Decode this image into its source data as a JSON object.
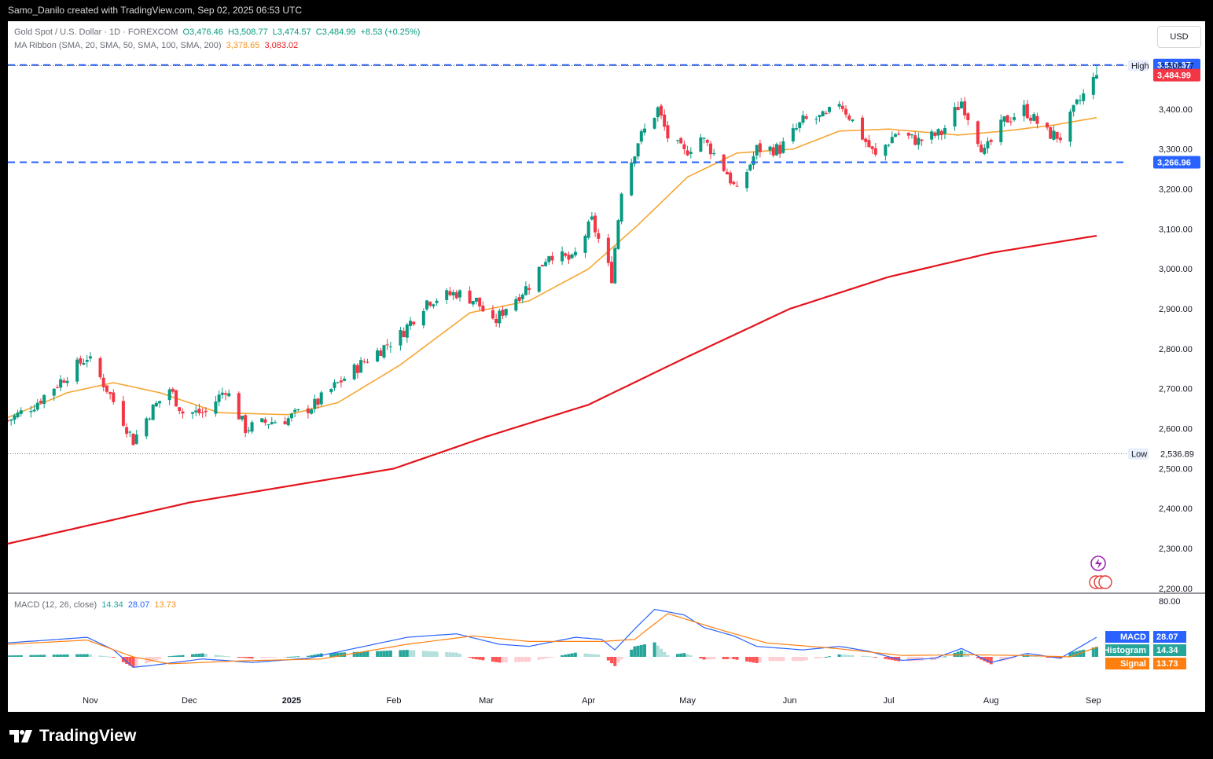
{
  "header": {
    "credit": "Samo_Danilo created with TradingView.com, Sep 02, 2025 06:53 UTC"
  },
  "symbol": {
    "title": "Gold Spot / U.S. Dollar · 1D · FOREXCOM",
    "open": "O3,476.46",
    "high": "H3,508.77",
    "low": "L3,474.57",
    "close": "C3,484.99",
    "change": "+8.53 (+0.25%)"
  },
  "ma_ribbon": {
    "label": "MA Ribbon (SMA, 20, SMA, 50, SMA, 100, SMA, 200)",
    "v1": "3,378.65",
    "v2": "3,083.02"
  },
  "macd": {
    "label": "MACD (12, 26, close)",
    "histogram": "14.34",
    "macd": "28.07",
    "signal": "13.73",
    "tags": {
      "macd": "MACD",
      "histogram": "Histogram",
      "signal": "Signal"
    }
  },
  "currency_button": "USD",
  "brand": "TradingView",
  "colors": {
    "up": "#089981",
    "down": "#f23645",
    "sma20": "#f7a532",
    "sma200": "#e3141c",
    "level": "#2962ff",
    "macd": "#2962ff",
    "signal": "#ff7f0e",
    "hist_up": "#26a69a",
    "hist_up_light": "#b2dfdb",
    "hist_down": "#ff5252",
    "hist_down_light": "#ffcdd2"
  },
  "chart_data": {
    "type": "candlestick",
    "price_axis": {
      "ticks": [
        2200,
        2300,
        2400,
        2500,
        2600,
        2700,
        2800,
        2900,
        3000,
        3100,
        3200,
        3300,
        3400
      ],
      "tick_labels": [
        "2,200.00",
        "2,300.00",
        "2,400.00",
        "2,500.00",
        "2,600.00",
        "2,700.00",
        "2,800.00",
        "2,900.00",
        "3,000.00",
        "3,100.00",
        "3,200.00",
        "3,300.00",
        "3,400.00"
      ],
      "range": [
        2190,
        3620
      ]
    },
    "time_axis": {
      "labels": [
        "Nov",
        "Dec",
        "2025",
        "Feb",
        "Mar",
        "Apr",
        "May",
        "Jun",
        "Jul",
        "Aug",
        "Sep"
      ],
      "dates": [
        "2024-11-01",
        "2024-12-01",
        "2025-01-01",
        "2025-02-01",
        "2025-03-01",
        "2025-04-01",
        "2025-05-01",
        "2025-06-01",
        "2025-07-01",
        "2025-08-01",
        "2025-09-01"
      ],
      "range": [
        "2024-10-07",
        "2025-09-02"
      ]
    },
    "anchors": [
      [
        "2024-10-07",
        2620
      ],
      [
        "2024-10-15",
        2660
      ],
      [
        "2024-10-23",
        2720
      ],
      [
        "2024-10-31",
        2780
      ],
      [
        "2024-11-06",
        2700
      ],
      [
        "2024-11-11",
        2620
      ],
      [
        "2024-11-14",
        2570
      ],
      [
        "2024-11-19",
        2640
      ],
      [
        "2024-11-25",
        2700
      ],
      [
        "2024-11-29",
        2640
      ],
      [
        "2024-12-06",
        2640
      ],
      [
        "2024-12-12",
        2700
      ],
      [
        "2024-12-18",
        2600
      ],
      [
        "2024-12-24",
        2615
      ],
      [
        "2024-12-31",
        2625
      ],
      [
        "2025-01-08",
        2660
      ],
      [
        "2025-01-16",
        2720
      ],
      [
        "2025-01-24",
        2775
      ],
      [
        "2025-02-03",
        2835
      ],
      [
        "2025-02-11",
        2920
      ],
      [
        "2025-02-20",
        2940
      ],
      [
        "2025-02-26",
        2920
      ],
      [
        "2025-03-03",
        2860
      ],
      [
        "2025-03-07",
        2905
      ],
      [
        "2025-03-14",
        2960
      ],
      [
        "2025-03-20",
        3040
      ],
      [
        "2025-03-27",
        3020
      ],
      [
        "2025-04-02",
        3120
      ],
      [
        "2025-04-08",
        2980
      ],
      [
        "2025-04-11",
        3200
      ],
      [
        "2025-04-16",
        3320
      ],
      [
        "2025-04-22",
        3400
      ],
      [
        "2025-04-25",
        3330
      ],
      [
        "2025-04-30",
        3290
      ],
      [
        "2025-05-05",
        3330
      ],
      [
        "2025-05-08",
        3300
      ],
      [
        "2025-05-13",
        3240
      ],
      [
        "2025-05-16",
        3190
      ],
      [
        "2025-05-22",
        3300
      ],
      [
        "2025-05-29",
        3300
      ],
      [
        "2025-06-05",
        3370
      ],
      [
        "2025-06-12",
        3380
      ],
      [
        "2025-06-16",
        3420
      ],
      [
        "2025-06-20",
        3370
      ],
      [
        "2025-06-27",
        3280
      ],
      [
        "2025-07-03",
        3340
      ],
      [
        "2025-07-10",
        3320
      ],
      [
        "2025-07-17",
        3340
      ],
      [
        "2025-07-23",
        3420
      ],
      [
        "2025-07-30",
        3290
      ],
      [
        "2025-08-05",
        3370
      ],
      [
        "2025-08-11",
        3400
      ],
      [
        "2025-08-18",
        3340
      ],
      [
        "2025-08-22",
        3330
      ],
      [
        "2025-08-27",
        3410
      ],
      [
        "2025-09-02",
        3485
      ]
    ],
    "sma20_anchors": [
      [
        "2024-10-07",
        2628
      ],
      [
        "2024-10-25",
        2690
      ],
      [
        "2024-11-08",
        2715
      ],
      [
        "2024-11-22",
        2690
      ],
      [
        "2024-12-10",
        2640
      ],
      [
        "2024-12-31",
        2635
      ],
      [
        "2025-01-15",
        2665
      ],
      [
        "2025-02-03",
        2760
      ],
      [
        "2025-02-24",
        2890
      ],
      [
        "2025-03-14",
        2920
      ],
      [
        "2025-04-01",
        3000
      ],
      [
        "2025-04-16",
        3110
      ],
      [
        "2025-05-01",
        3230
      ],
      [
        "2025-05-16",
        3290
      ],
      [
        "2025-06-02",
        3300
      ],
      [
        "2025-06-16",
        3345
      ],
      [
        "2025-07-01",
        3350
      ],
      [
        "2025-07-22",
        3335
      ],
      [
        "2025-08-05",
        3345
      ],
      [
        "2025-08-20",
        3360
      ],
      [
        "2025-09-02",
        3378.65
      ]
    ],
    "sma200_anchors": [
      [
        "2024-10-07",
        2312
      ],
      [
        "2024-12-01",
        2415
      ],
      [
        "2025-02-01",
        2500
      ],
      [
        "2025-03-01",
        2580
      ],
      [
        "2025-04-01",
        2660
      ],
      [
        "2025-05-01",
        2780
      ],
      [
        "2025-06-01",
        2900
      ],
      [
        "2025-07-01",
        2980
      ],
      [
        "2025-08-01",
        3040
      ],
      [
        "2025-09-02",
        3083.02
      ]
    ],
    "levels": [
      {
        "name": "resistance",
        "value": 3510.37,
        "label": "3,510.37",
        "style": "dashed"
      },
      {
        "name": "support",
        "value": 3266.96,
        "label": "3,266.96",
        "style": "dashed"
      }
    ],
    "range_markers": [
      {
        "name": "High",
        "value": 3508.77,
        "label": "3,508.77",
        "date": "2025-09-02"
      },
      {
        "name": "Low",
        "value": 2536.89,
        "label": "2,536.89",
        "date": "2024-11-14"
      }
    ],
    "last_price": {
      "value": 3484.99,
      "label": "3,484.99"
    },
    "macd_axis": {
      "ticks": [
        80
      ],
      "tick_labels": [
        "80.00"
      ],
      "range": [
        -45,
        90
      ]
    },
    "macd_anchors": [
      [
        "2024-10-07",
        20
      ],
      [
        "2024-10-31",
        28
      ],
      [
        "2024-11-08",
        10
      ],
      [
        "2024-11-14",
        -15
      ],
      [
        "2024-11-20",
        -12
      ],
      [
        "2024-12-05",
        -3
      ],
      [
        "2024-12-20",
        -8
      ],
      [
        "2025-01-06",
        -2
      ],
      [
        "2025-01-20",
        12
      ],
      [
        "2025-02-05",
        28
      ],
      [
        "2025-02-20",
        33
      ],
      [
        "2025-03-05",
        18
      ],
      [
        "2025-03-14",
        15
      ],
      [
        "2025-03-28",
        28
      ],
      [
        "2025-04-05",
        25
      ],
      [
        "2025-04-09",
        10
      ],
      [
        "2025-04-15",
        40
      ],
      [
        "2025-04-21",
        68
      ],
      [
        "2025-04-30",
        60
      ],
      [
        "2025-05-06",
        42
      ],
      [
        "2025-05-15",
        30
      ],
      [
        "2025-05-22",
        15
      ],
      [
        "2025-06-05",
        10
      ],
      [
        "2025-06-16",
        15
      ],
      [
        "2025-06-25",
        8
      ],
      [
        "2025-07-05",
        -5
      ],
      [
        "2025-07-15",
        -2
      ],
      [
        "2025-07-23",
        12
      ],
      [
        "2025-08-01",
        -8
      ],
      [
        "2025-08-12",
        5
      ],
      [
        "2025-08-22",
        -2
      ],
      [
        "2025-09-02",
        28.07
      ]
    ],
    "signal_anchors": [
      [
        "2024-10-07",
        18
      ],
      [
        "2024-10-31",
        24
      ],
      [
        "2024-11-14",
        0
      ],
      [
        "2024-11-25",
        -10
      ],
      [
        "2024-12-15",
        -6
      ],
      [
        "2025-01-10",
        -3
      ],
      [
        "2025-02-05",
        18
      ],
      [
        "2025-02-25",
        30
      ],
      [
        "2025-03-14",
        22
      ],
      [
        "2025-04-05",
        22
      ],
      [
        "2025-04-15",
        25
      ],
      [
        "2025-04-25",
        62
      ],
      [
        "2025-05-10",
        40
      ],
      [
        "2025-05-25",
        20
      ],
      [
        "2025-06-15",
        12
      ],
      [
        "2025-07-05",
        2
      ],
      [
        "2025-07-25",
        3
      ],
      [
        "2025-08-10",
        2
      ],
      [
        "2025-08-25",
        0
      ],
      [
        "2025-09-02",
        13.73
      ]
    ]
  }
}
